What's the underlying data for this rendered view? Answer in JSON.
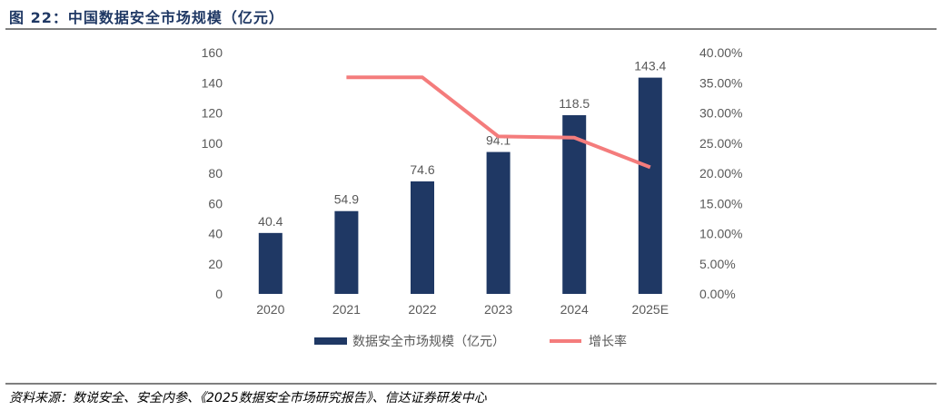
{
  "title": "图 22：中国数据安全市场规模（亿元）",
  "source": "资料来源：数说安全、安全内参、《2025数据安全市场研究报告》、信达证券研发中心",
  "chart_data": {
    "type": "bar+line",
    "categories": [
      "2020",
      "2021",
      "2022",
      "2023",
      "2024",
      "2025E"
    ],
    "series": [
      {
        "name": "数据安全市场规模（亿元）",
        "type": "bar",
        "axis": "left",
        "values": [
          40.4,
          54.9,
          74.6,
          94.1,
          118.5,
          143.4
        ],
        "labels": [
          "40.4",
          "54.9",
          "74.6",
          "94.1",
          "118.5",
          "143.4"
        ],
        "color": "#1f3864"
      },
      {
        "name": "增长率",
        "type": "line",
        "axis": "right",
        "values": [
          null,
          35.9,
          35.9,
          26.1,
          25.9,
          21.0
        ],
        "color": "#f47c7c"
      }
    ],
    "y_left": {
      "min": 0,
      "max": 160,
      "ticks": [
        "0",
        "20",
        "40",
        "60",
        "80",
        "100",
        "120",
        "140",
        "160"
      ]
    },
    "y_right": {
      "min": 0,
      "max": 40,
      "ticks": [
        "0.00%",
        "5.00%",
        "10.00%",
        "15.00%",
        "20.00%",
        "25.00%",
        "30.00%",
        "35.00%",
        "40.00%"
      ]
    },
    "grid": false,
    "legend": "bottom"
  }
}
